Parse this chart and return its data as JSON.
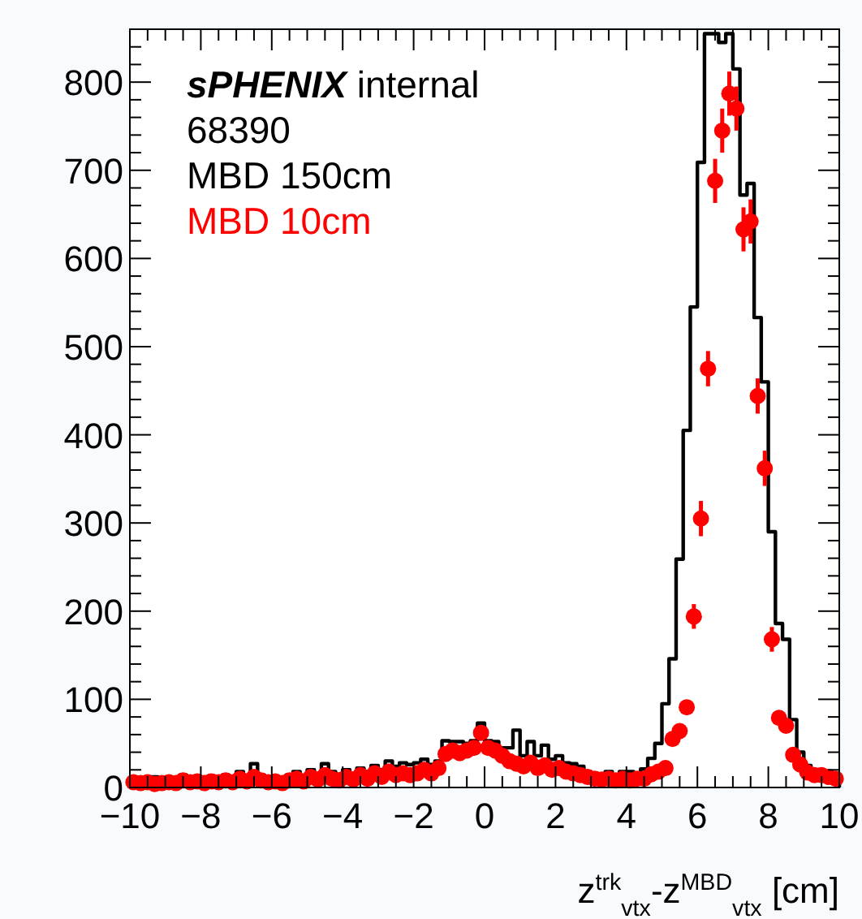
{
  "chart_data": {
    "type": "histogram",
    "xlabel": "z$^{trk}$$_{vtx}$-z$^{MBD}$$_{vtx}$ [cm]",
    "annotations": [
      "sPHENIX internal",
      "68390"
    ],
    "bins": [
      -10,
      -9.8,
      -9.6,
      -9.4,
      -9.2,
      -9,
      -8.8,
      -8.6,
      -8.4,
      -8.2,
      -8,
      -7.8,
      -7.6,
      -7.4,
      -7.2,
      -7,
      -6.8,
      -6.6,
      -6.4,
      -6.2,
      -6,
      -5.8,
      -5.6,
      -5.4,
      -5.2,
      -5,
      -4.8,
      -4.6,
      -4.4,
      -4.2,
      -4,
      -3.8,
      -3.6,
      -3.4,
      -3.2,
      -3,
      -2.8,
      -2.6,
      -2.4,
      -2.2,
      -2,
      -1.8,
      -1.6,
      -1.4,
      -1.2,
      -1,
      -0.8,
      -0.6,
      -0.4,
      -0.2,
      0,
      0.2,
      0.4,
      0.6,
      0.8,
      1,
      1.2,
      1.4,
      1.6,
      1.8,
      2,
      2.2,
      2.4,
      2.6,
      2.8,
      3,
      3.2,
      3.4,
      3.6,
      3.8,
      4,
      4.2,
      4.4,
      4.6,
      4.8,
      5,
      5.2,
      5.4,
      5.6,
      5.8,
      6,
      6.2,
      6.4,
      6.6,
      6.8,
      7,
      7.2,
      7.4,
      7.6,
      7.8,
      8,
      8.2,
      8.4,
      8.6,
      8.8,
      9,
      9.2,
      9.4,
      9.6,
      9.8,
      10
    ],
    "series": [
      {
        "name": "MBD 150cm",
        "color": "#000000",
        "values": [
          8,
          10,
          9,
          12,
          8,
          10,
          9,
          14,
          10,
          12,
          8,
          13,
          11,
          14,
          10,
          18,
          12,
          27,
          14,
          10,
          12,
          9,
          14,
          18,
          12,
          20,
          16,
          27,
          18,
          15,
          20,
          16,
          22,
          18,
          25,
          20,
          30,
          24,
          28,
          26,
          28,
          32,
          26,
          30,
          53,
          52,
          52,
          50,
          53,
          73,
          53,
          52,
          45,
          45,
          65,
          36,
          52,
          36,
          48,
          32,
          36,
          28,
          27,
          24,
          18,
          16,
          15,
          18,
          12,
          18,
          18,
          14,
          21,
          33,
          50,
          95,
          146,
          259,
          405,
          545,
          709,
          855,
          855,
          845,
          855,
          815,
          672,
          685,
          533,
          460,
          290,
          186,
          168,
          77,
          40,
          25,
          15,
          15,
          12,
          8
        ]
      },
      {
        "name": "MBD 10cm",
        "type": "scatter",
        "color": "#ff0000",
        "marker": "circle",
        "x": [
          -9.9,
          -9.7,
          -9.5,
          -9.3,
          -9.1,
          -8.9,
          -8.7,
          -8.5,
          -8.3,
          -8.1,
          -7.9,
          -7.7,
          -7.5,
          -7.3,
          -7.1,
          -6.9,
          -6.7,
          -6.5,
          -6.3,
          -6.1,
          -5.9,
          -5.7,
          -5.5,
          -5.3,
          -5.1,
          -4.9,
          -4.7,
          -4.5,
          -4.3,
          -4.1,
          -3.9,
          -3.7,
          -3.5,
          -3.3,
          -3.1,
          -2.9,
          -2.7,
          -2.5,
          -2.3,
          -2.1,
          -1.9,
          -1.7,
          -1.5,
          -1.3,
          -1.1,
          -0.9,
          -0.7,
          -0.5,
          -0.3,
          -0.1,
          0.1,
          0.3,
          0.5,
          0.7,
          0.9,
          1.1,
          1.3,
          1.5,
          1.7,
          1.9,
          2.1,
          2.3,
          2.5,
          2.7,
          2.9,
          3.1,
          3.3,
          3.5,
          3.7,
          3.9,
          4.1,
          4.3,
          4.5,
          4.7,
          4.9,
          5.1,
          5.3,
          5.5,
          5.7,
          5.9,
          6.1,
          6.3,
          6.5,
          6.7,
          6.9,
          7.1,
          7.3,
          7.5,
          7.7,
          7.9,
          8.1,
          8.3,
          8.5,
          8.7,
          8.9,
          9.1,
          9.3,
          9.5,
          9.7,
          9.9
        ],
        "values": [
          6,
          5,
          6,
          4,
          5,
          6,
          5,
          8,
          6,
          7,
          5,
          7,
          6,
          8,
          6,
          10,
          7,
          12,
          8,
          6,
          7,
          5,
          8,
          10,
          7,
          12,
          9,
          14,
          10,
          8,
          12,
          9,
          14,
          10,
          16,
          12,
          18,
          14,
          16,
          14,
          16,
          20,
          16,
          22,
          38,
          42,
          39,
          42,
          45,
          62,
          45,
          42,
          36,
          30,
          27,
          24,
          28,
          22,
          25,
          20,
          22,
          18,
          16,
          14,
          12,
          10,
          9,
          10,
          8,
          10,
          8,
          10,
          10,
          15,
          18,
          22,
          55,
          64,
          91,
          194,
          305,
          475,
          688,
          745,
          787,
          770,
          633,
          642,
          444,
          362,
          168,
          79,
          70,
          37,
          26,
          17,
          14,
          14,
          12,
          10
        ],
        "errors": [
          null,
          null,
          null,
          null,
          null,
          null,
          null,
          null,
          null,
          null,
          null,
          null,
          null,
          null,
          null,
          null,
          null,
          null,
          null,
          null,
          null,
          null,
          null,
          null,
          null,
          null,
          null,
          null,
          null,
          null,
          null,
          null,
          null,
          null,
          null,
          null,
          null,
          null,
          null,
          null,
          null,
          null,
          null,
          null,
          null,
          null,
          null,
          null,
          null,
          null,
          null,
          null,
          null,
          null,
          null,
          null,
          null,
          null,
          null,
          null,
          null,
          null,
          null,
          null,
          null,
          null,
          null,
          null,
          null,
          null,
          null,
          null,
          null,
          null,
          null,
          null,
          null,
          null,
          null,
          14,
          20,
          20,
          25,
          25,
          25,
          25,
          25,
          25,
          20,
          20,
          14,
          null,
          null,
          null,
          null,
          null,
          null,
          null,
          null,
          null
        ]
      }
    ],
    "xlim": [
      -10,
      10
    ],
    "ylim": [
      0,
      860
    ],
    "xticks": [
      {
        "value": -10,
        "label": "−10"
      },
      {
        "value": -8,
        "label": "−8"
      },
      {
        "value": -6,
        "label": "−6"
      },
      {
        "value": -4,
        "label": "−4"
      },
      {
        "value": -2,
        "label": "−2"
      },
      0,
      2,
      4,
      6,
      8,
      10
    ],
    "yticks": [
      0,
      100,
      200,
      300,
      400,
      500,
      600,
      700,
      800
    ],
    "legend": "top left",
    "grid": false
  }
}
